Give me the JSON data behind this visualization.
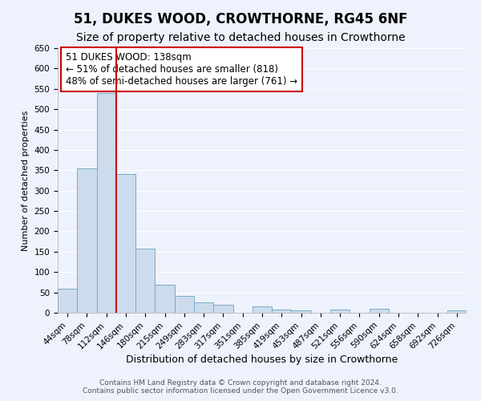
{
  "title": "51, DUKES WOOD, CROWTHORNE, RG45 6NF",
  "subtitle": "Size of property relative to detached houses in Crowthorne",
  "xlabel": "Distribution of detached houses by size in Crowthorne",
  "ylabel": "Number of detached properties",
  "footer_line1": "Contains HM Land Registry data © Crown copyright and database right 2024.",
  "footer_line2": "Contains public sector information licensed under the Open Government Licence v3.0.",
  "bin_labels": [
    "44sqm",
    "78sqm",
    "112sqm",
    "146sqm",
    "180sqm",
    "215sqm",
    "249sqm",
    "283sqm",
    "317sqm",
    "351sqm",
    "385sqm",
    "419sqm",
    "453sqm",
    "487sqm",
    "521sqm",
    "556sqm",
    "590sqm",
    "624sqm",
    "658sqm",
    "692sqm",
    "726sqm"
  ],
  "bar_heights": [
    60,
    355,
    540,
    340,
    157,
    68,
    42,
    25,
    20,
    0,
    15,
    8,
    5,
    0,
    8,
    0,
    10,
    0,
    0,
    0,
    5
  ],
  "bar_color": "#ccdcec",
  "bar_edge_color": "#7aaac8",
  "ylim": [
    0,
    650
  ],
  "yticks": [
    0,
    50,
    100,
    150,
    200,
    250,
    300,
    350,
    400,
    450,
    500,
    550,
    600,
    650
  ],
  "property_line_color": "#cc0000",
  "annotation_title": "51 DUKES WOOD: 138sqm",
  "annotation_line1": "← 51% of detached houses are smaller (818)",
  "annotation_line2": "48% of semi-detached houses are larger (761) →",
  "annotation_box_color": "#cc0000",
  "background_color": "#eef2fc",
  "grid_color": "#ffffff",
  "title_fontsize": 12,
  "subtitle_fontsize": 10,
  "xlabel_fontsize": 9,
  "ylabel_fontsize": 8,
  "tick_fontsize": 7.5,
  "annotation_fontsize": 8.5,
  "footer_fontsize": 6.5
}
